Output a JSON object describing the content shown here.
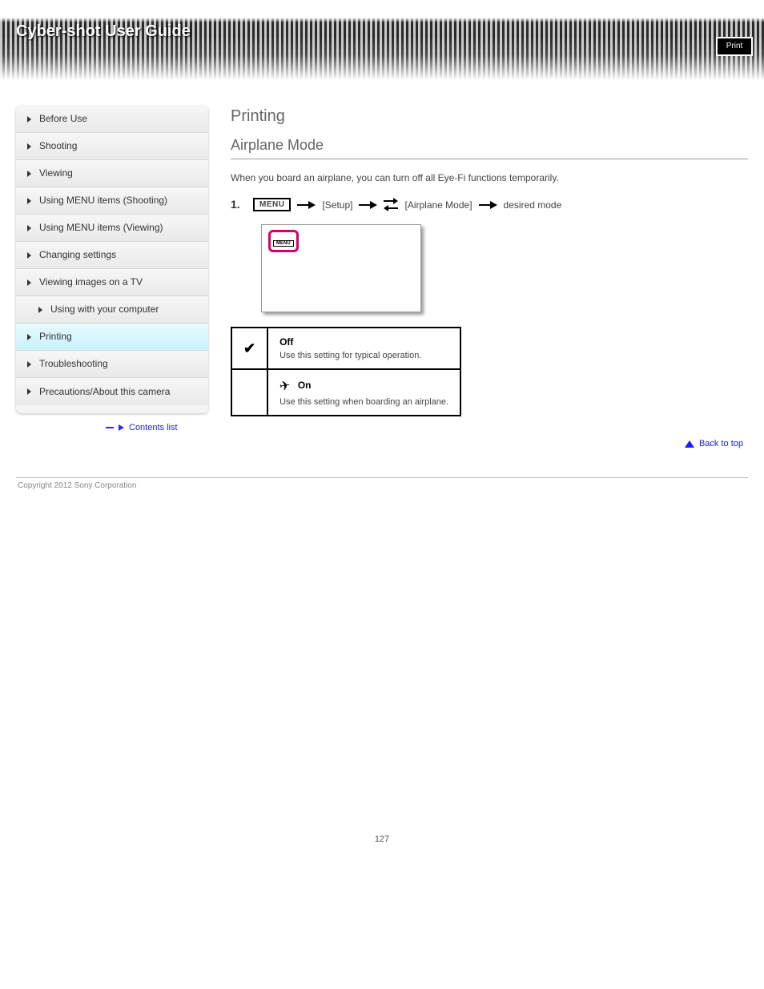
{
  "banner": {
    "title": "Cyber-shot User Guide",
    "badge": "Print"
  },
  "sidebar": {
    "items": [
      {
        "label": "Before Use"
      },
      {
        "label": "Shooting"
      },
      {
        "label": "Viewing"
      },
      {
        "label": "Using MENU items (Shooting)"
      },
      {
        "label": "Using MENU items (Viewing)"
      },
      {
        "label": "Changing settings"
      },
      {
        "label": "Viewing images on a TV"
      },
      {
        "label": "Using with your computer"
      },
      {
        "label": "Printing"
      },
      {
        "label": "Troubleshooting"
      },
      {
        "label": "Precautions/About this camera"
      }
    ],
    "back_label": "Contents list"
  },
  "main": {
    "breadcrumb_section": "Printing",
    "title": "Airplane Mode",
    "intro": "When you board an airplane, you can turn off all Eye-Fi functions temporarily.",
    "step1_pre": "",
    "step1_menu": "MENU",
    "step1_mid1": "",
    "step1_setup": "[Setup]",
    "step1_mid2": "",
    "step1_item": "[Airplane Mode]",
    "step1_tail": "desired mode",
    "options": {
      "off": {
        "label": "Off",
        "desc": "Use this setting for typical operation."
      },
      "on": {
        "label": "On",
        "desc": "Use this setting when boarding an airplane."
      }
    }
  },
  "footer": {
    "back": "Back to top",
    "copyright": "Copyright 2012 Sony Corporation"
  },
  "page_number": "127"
}
